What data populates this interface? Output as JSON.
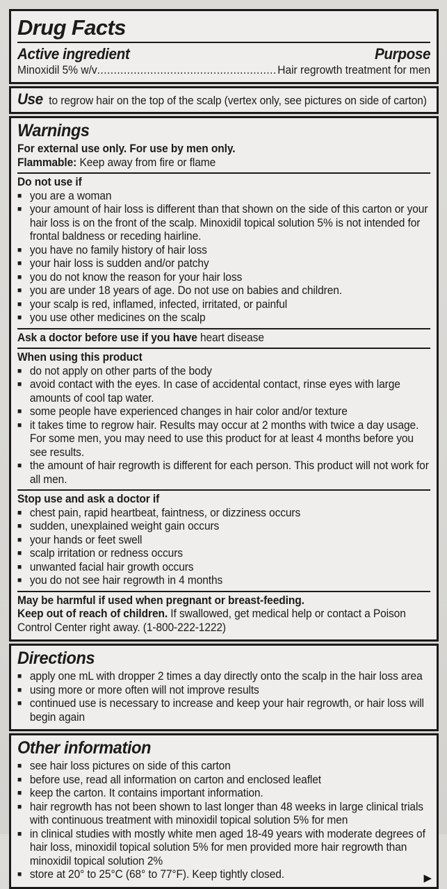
{
  "bullet_glyph": "■",
  "colors": {
    "border": "#1b1a18",
    "text": "#1c1b19",
    "label_background": "#efeeec",
    "page_background": "#d8d7d4"
  },
  "header": {
    "title": "Drug Facts",
    "active_heading": "Active ingredient",
    "purpose_heading": "Purpose",
    "ingredient": "Minoxidil 5% w/v",
    "leader_dots": "................................................................",
    "purpose_value": "Hair regrowth treatment for men"
  },
  "use": {
    "heading": "Use",
    "text": "to regrow hair on the top of the scalp (vertex only, see pictures on side of carton)"
  },
  "warnings": {
    "heading": "Warnings",
    "blocks": [
      {
        "type": "line",
        "parts": [
          {
            "t": "For external use only. For use by men only.",
            "b": true
          }
        ]
      },
      {
        "type": "line",
        "parts": [
          {
            "t": "Flammable:",
            "b": true
          },
          {
            "t": " Keep away from fire or flame"
          }
        ]
      },
      {
        "type": "divider"
      },
      {
        "type": "line",
        "parts": [
          {
            "t": "Do not use if",
            "b": true
          }
        ]
      },
      {
        "type": "bullets",
        "items": [
          [
            {
              "t": "you are a woman"
            }
          ],
          [
            {
              "t": "your amount of hair loss is different than that shown on the side of this carton or your hair loss is on the front of the scalp. Minoxidil topical solution 5% is not intended for frontal baldness or receding hairline."
            }
          ],
          [
            {
              "t": "you have no family history of hair loss"
            }
          ],
          [
            {
              "t": "your hair loss is sudden and/or patchy"
            }
          ],
          [
            {
              "t": "you do not know the reason for your hair loss"
            }
          ],
          [
            {
              "t": "you are under 18 years of age. Do not use on babies and children."
            }
          ],
          [
            {
              "t": "your scalp is red, inflamed, infected, irritated, or painful"
            }
          ],
          [
            {
              "t": "you use other medicines on the scalp"
            }
          ]
        ]
      },
      {
        "type": "divider"
      },
      {
        "type": "line",
        "parts": [
          {
            "t": "Ask a doctor before use if you have",
            "b": true
          },
          {
            "t": " heart disease"
          }
        ]
      },
      {
        "type": "divider"
      },
      {
        "type": "line",
        "parts": [
          {
            "t": "When using this product",
            "b": true
          }
        ]
      },
      {
        "type": "bullets",
        "items": [
          [
            {
              "t": "do not apply on other parts of the body"
            }
          ],
          [
            {
              "t": "avoid contact with the eyes. In case of accidental contact, rinse eyes with large amounts of cool tap water."
            }
          ],
          [
            {
              "t": "some people have experienced changes in hair color and/or texture"
            }
          ],
          [
            {
              "t": "it takes time to regrow hair. Results may occur at 2 months with twice a day usage. For some men, you may need to use this product for at least 4 months before you see results."
            }
          ],
          [
            {
              "t": "the amount of hair regrowth is different for each person. This product will not work for all men."
            }
          ]
        ]
      },
      {
        "type": "divider"
      },
      {
        "type": "line",
        "parts": [
          {
            "t": "Stop use and ask a doctor if",
            "b": true
          }
        ]
      },
      {
        "type": "bullets",
        "items": [
          [
            {
              "t": "chest pain, rapid heartbeat, faintness, or dizziness occurs"
            }
          ],
          [
            {
              "t": "sudden, unexplained weight gain occurs"
            }
          ],
          [
            {
              "t": "your hands or feet swell"
            }
          ],
          [
            {
              "t": "scalp irritation or redness occurs"
            }
          ],
          [
            {
              "t": "unwanted facial hair growth occurs"
            }
          ],
          [
            {
              "t": "you do not see hair regrowth in 4 months"
            }
          ]
        ]
      },
      {
        "type": "divider"
      },
      {
        "type": "line",
        "parts": [
          {
            "t": "May be harmful if used when pregnant or breast-feeding.",
            "b": true
          }
        ]
      },
      {
        "type": "line",
        "parts": [
          {
            "t": "Keep out of reach of children.",
            "b": true
          },
          {
            "t": " If swallowed, get medical help or contact a Poison Control Center right away. (1-800-222-1222)"
          }
        ]
      }
    ]
  },
  "directions": {
    "heading": "Directions",
    "blocks": [
      {
        "type": "bullets",
        "items": [
          [
            {
              "t": "apply one mL with dropper 2 times a day directly onto the scalp in the hair loss area"
            }
          ],
          [
            {
              "t": "using more or more often will not improve results"
            }
          ],
          [
            {
              "t": "continued use is necessary to increase and keep your hair regrowth, or hair loss will begin again"
            }
          ]
        ]
      }
    ]
  },
  "other_information": {
    "heading": "Other information",
    "continuation_arrow": "▶",
    "blocks": [
      {
        "type": "bullets",
        "items": [
          [
            {
              "t": "see hair loss pictures on side of this carton"
            }
          ],
          [
            {
              "t": "before use, read all information on carton and enclosed leaflet"
            }
          ],
          [
            {
              "t": "keep the carton. It contains important information."
            }
          ],
          [
            {
              "t": "hair regrowth has not been shown to last longer than 48 weeks in large clinical trials with continuous treatment with minoxidil topical solution 5% for men"
            }
          ],
          [
            {
              "t": "in clinical studies with mostly white men aged 18-49 years with moderate degrees of hair loss, minoxidil topical solution 5% for men provided more hair regrowth than minoxidil topical solution 2%"
            }
          ],
          [
            {
              "t": "store at 20° to 25°C (68° to 77°F). Keep tightly closed."
            }
          ]
        ]
      }
    ]
  }
}
